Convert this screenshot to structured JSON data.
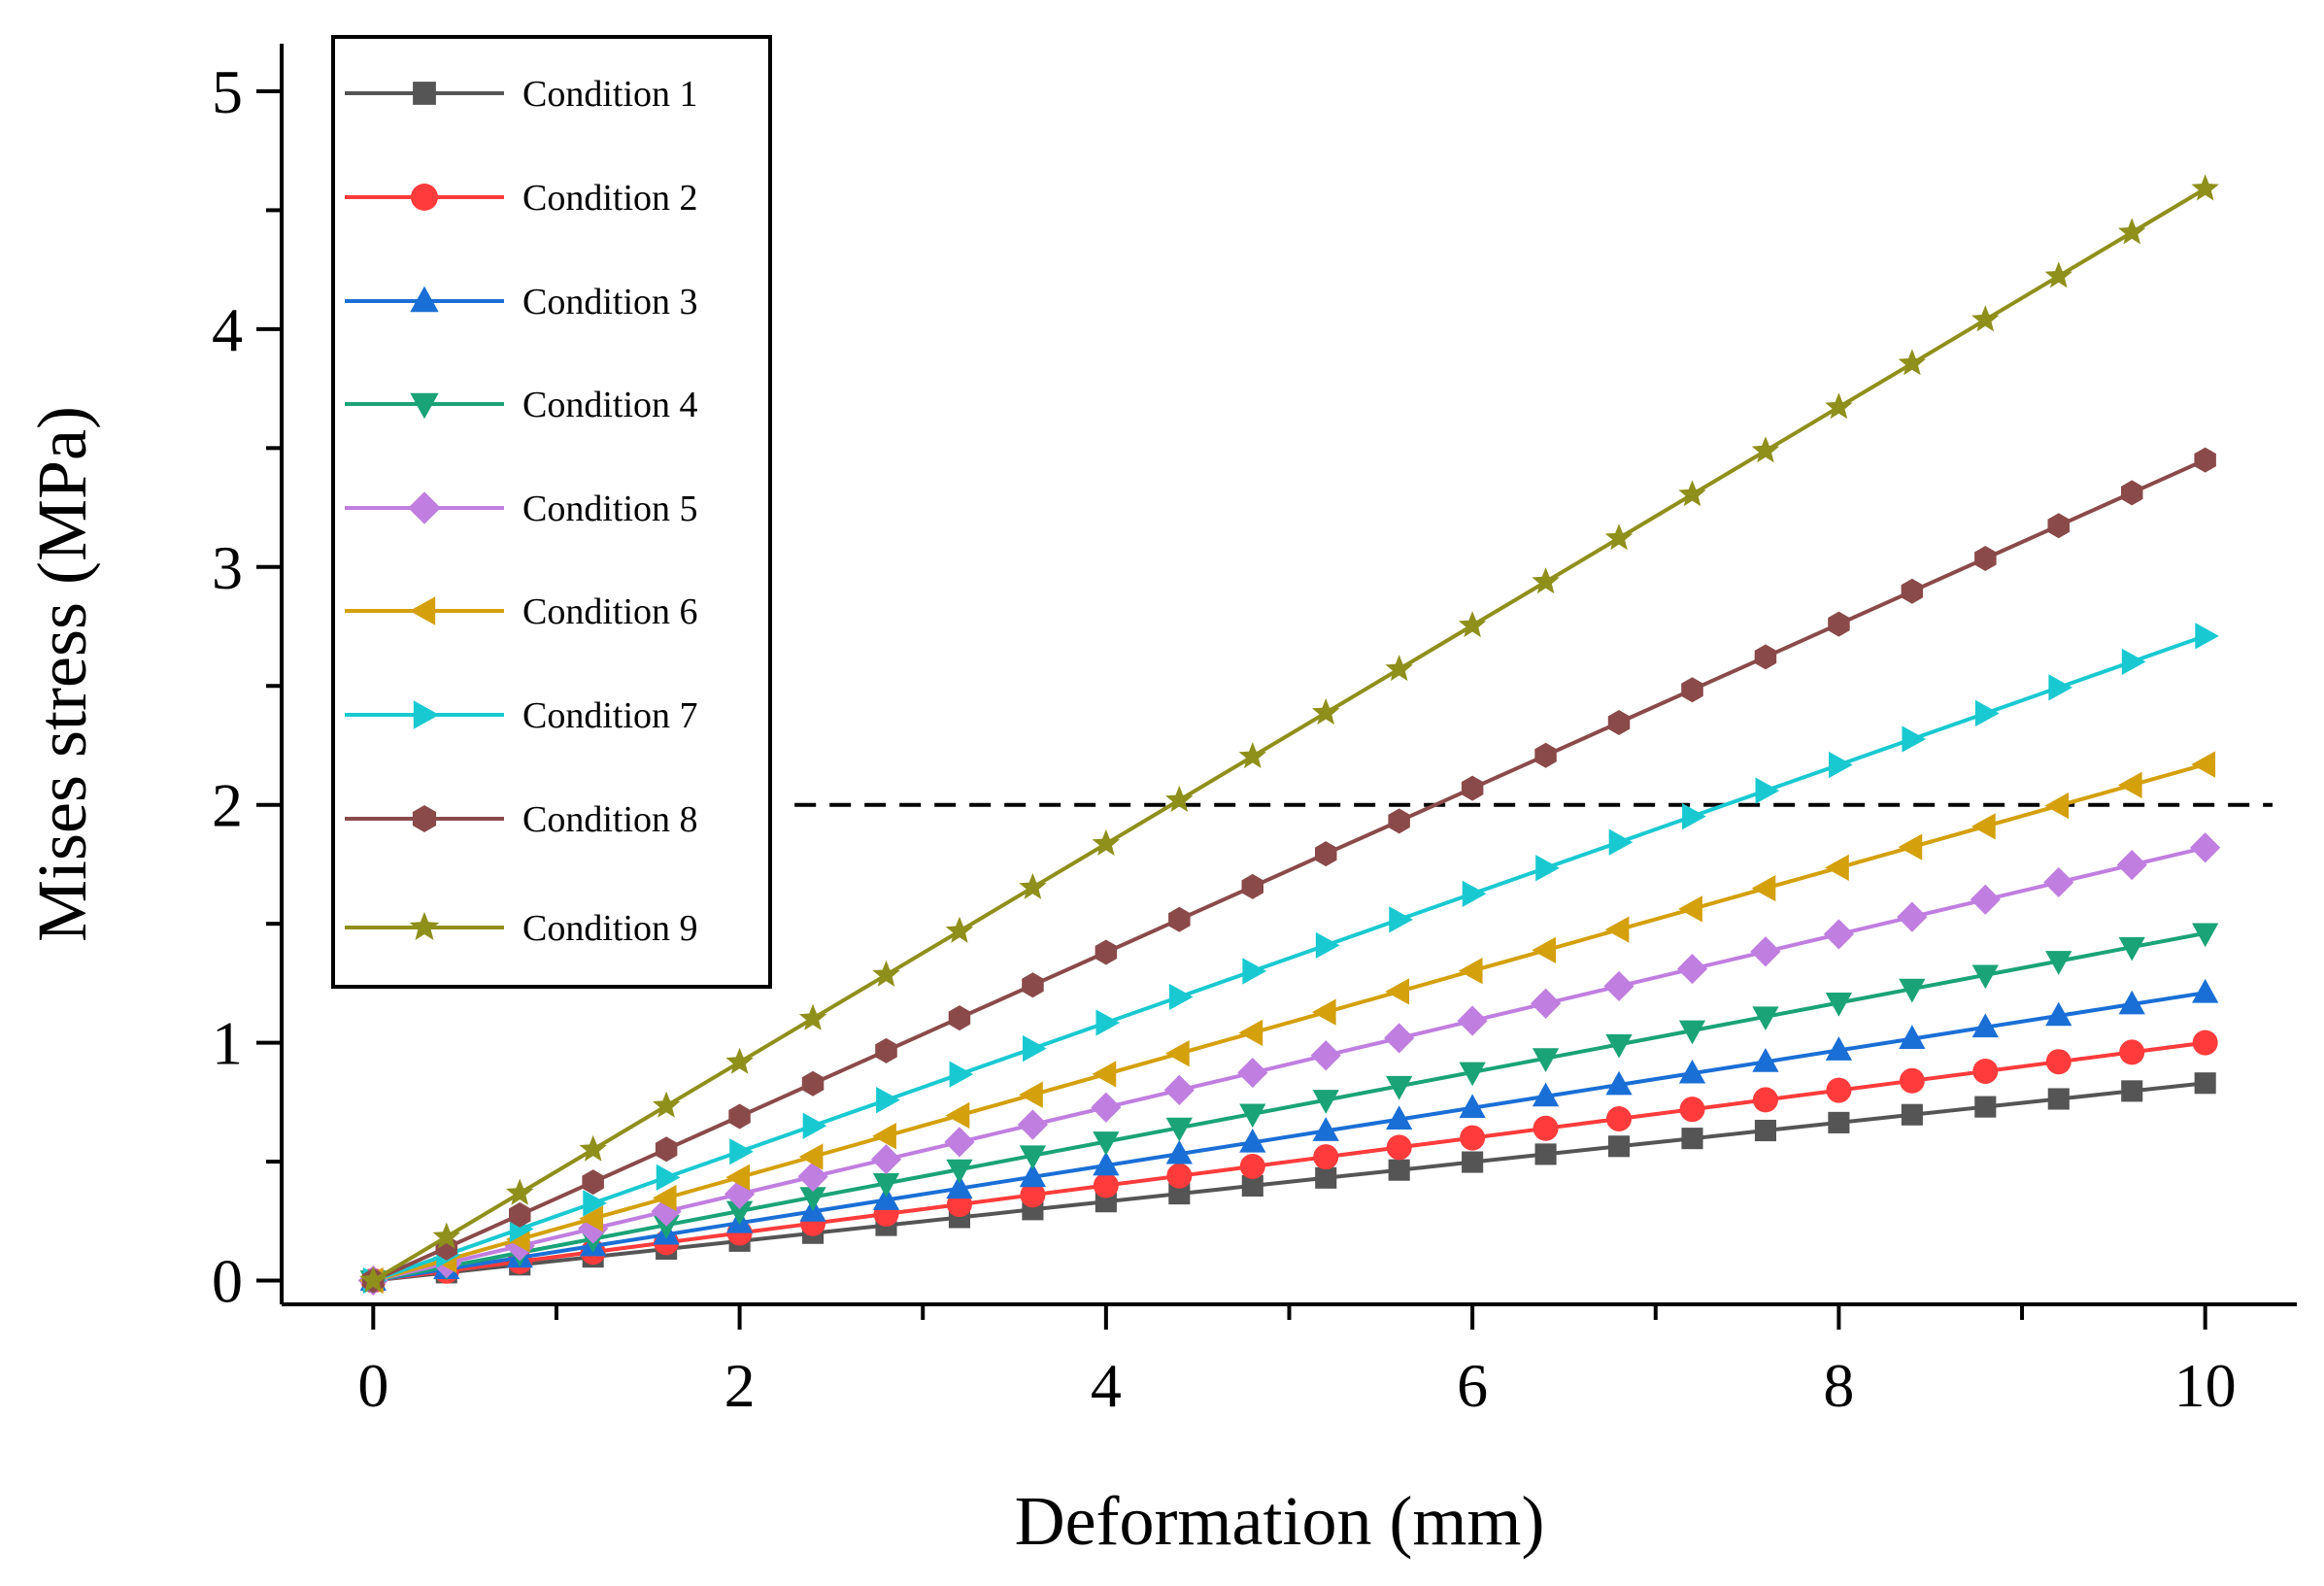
{
  "chart_data": {
    "type": "line",
    "xlabel": "Deformation (mm)",
    "ylabel": "Mises stress (MPa)",
    "xlim": [
      -0.5,
      10.5
    ],
    "ylim": [
      -0.1,
      5.2
    ],
    "xticks": [
      0,
      2,
      4,
      6,
      8,
      10
    ],
    "yticks": [
      0,
      1,
      2,
      3,
      4,
      5
    ],
    "x": [
      0,
      0.4,
      0.8,
      1.2,
      1.6,
      2.0,
      2.4,
      2.8,
      3.2,
      3.6,
      4.0,
      4.4,
      4.8,
      5.2,
      5.6,
      6.0,
      6.4,
      6.8,
      7.2,
      7.6,
      8.0,
      8.4,
      8.8,
      9.2,
      9.6,
      10.0
    ],
    "reference_line": {
      "y": 2,
      "style": "dashed",
      "from_x": 2.3
    },
    "legend": "top-left",
    "grid": false,
    "series": [
      {
        "name": "Condition 1",
        "color": "#555555",
        "marker": "square",
        "slope": 0.083
      },
      {
        "name": "Condition 2",
        "color": "#ff3b3b",
        "marker": "circle",
        "slope": 0.1
      },
      {
        "name": "Condition 3",
        "color": "#1a6fd6",
        "marker": "triangle-up",
        "slope": 0.121
      },
      {
        "name": "Condition 4",
        "color": "#1aa377",
        "marker": "triangle-down",
        "slope": 0.146
      },
      {
        "name": "Condition 5",
        "color": "#c07ee0",
        "marker": "diamond",
        "slope": 0.182
      },
      {
        "name": "Condition 6",
        "color": "#d4a00c",
        "marker": "triangle-left",
        "slope": 0.217
      },
      {
        "name": "Condition 7",
        "color": "#19c9d1",
        "marker": "triangle-right",
        "slope": 0.271
      },
      {
        "name": "Condition 8",
        "color": "#8b4a4a",
        "marker": "hexagon",
        "slope": 0.345
      },
      {
        "name": "Condition 9",
        "color": "#8f8f1c",
        "marker": "star",
        "slope": 0.459
      }
    ]
  }
}
